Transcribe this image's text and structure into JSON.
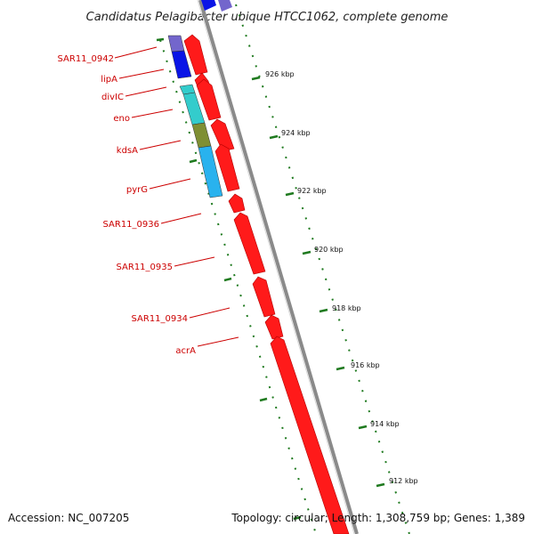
{
  "title": "Candidatus Pelagibacter ubique HTCC1062, complete genome",
  "footer": {
    "accession": "Accession: NC_007205",
    "summary": "Topology: circular; Length: 1,308,759 bp; Genes: 1,389"
  },
  "colors": {
    "forward_gene": "#ff1a1a",
    "backbone": "#888888",
    "label": "#cc0000",
    "tick": "#1f7a1f",
    "blue": "#0a14e6",
    "purple": "#7366cc",
    "cyan": "#33cccc",
    "olive": "#7f8f33",
    "sky": "#29b2ee"
  },
  "gene_labels": [
    "SAR11_0942",
    "lipA",
    "divIC",
    "eno",
    "kdsA",
    "pyrG",
    "SAR11_0936",
    "SAR11_0935",
    "SAR11_0934",
    "acrA"
  ],
  "tick_labels": [
    "926 kbp",
    "924 kbp",
    "922 kbp",
    "920 kbp",
    "918 kbp",
    "916 kbp",
    "914 kbp",
    "912 kbp"
  ]
}
